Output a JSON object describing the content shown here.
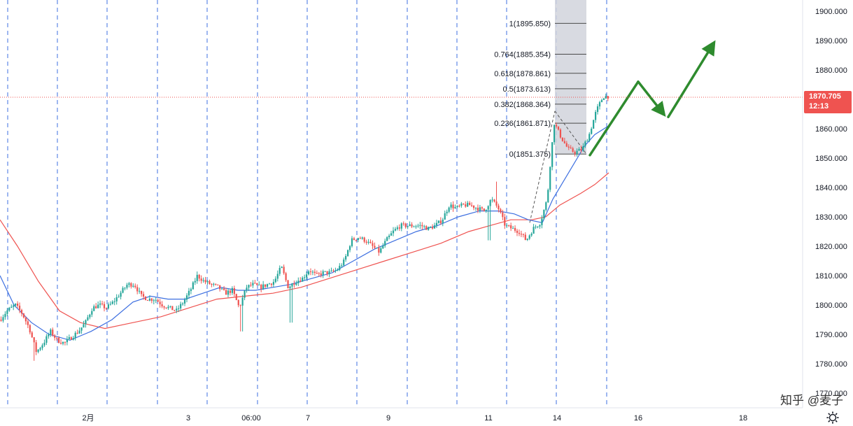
{
  "chart_data": {
    "type": "candlestick",
    "ylim": [
      1770,
      1905
    ],
    "y_ticks": [
      1770,
      1780,
      1790,
      1800,
      1810,
      1820,
      1830,
      1840,
      1850,
      1860,
      1870,
      1880,
      1890,
      1900
    ],
    "y_tick_labels": [
      "1770.000",
      "1780.000",
      "1790.000",
      "1800.000",
      "1810.000",
      "1820.000",
      "1830.000",
      "1840.000",
      "1850.000",
      "1860.000",
      "1870.000",
      "1880.000",
      "1890.000",
      "1900.000"
    ],
    "x_tick_labels": [
      "2月",
      "3",
      "06:00",
      "7",
      "9",
      "11",
      "14",
      "16",
      "18"
    ],
    "current_price": "1870.705",
    "countdown": "12:13",
    "colors": {
      "up": "#26a69a",
      "down": "#ef5350",
      "ma_fast": "#3d6fe0",
      "ma_slow": "#ef5350",
      "session_line": "#3d6fe0",
      "price_tag": "#ef5350",
      "arrow": "#2e8b2e",
      "fib_box": "#d1d4dc"
    },
    "fibonacci": {
      "low": 1851.375,
      "high": 1895.85,
      "levels": [
        {
          "ratio": 0,
          "price": 1851.375,
          "label": "0(1851.375)"
        },
        {
          "ratio": 0.236,
          "price": 1861.871,
          "label": "0.236(1861.871)"
        },
        {
          "ratio": 0.382,
          "price": 1868.364,
          "label": "0.382(1868.364)"
        },
        {
          "ratio": 0.5,
          "price": 1873.613,
          "label": "0.5(1873.613)"
        },
        {
          "ratio": 0.618,
          "price": 1878.861,
          "label": "0.618(1878.861)"
        },
        {
          "ratio": 0.764,
          "price": 1885.354,
          "label": "0.764(1885.354)"
        },
        {
          "ratio": 1,
          "price": 1895.85,
          "label": "1(1895.850)"
        }
      ]
    },
    "price_path": [
      [
        0,
        1795
      ],
      [
        10,
        1798
      ],
      [
        22,
        1800
      ],
      [
        32,
        1797
      ],
      [
        42,
        1792
      ],
      [
        52,
        1784
      ],
      [
        62,
        1787
      ],
      [
        72,
        1791
      ],
      [
        82,
        1788
      ],
      [
        92,
        1787
      ],
      [
        102,
        1789
      ],
      [
        112,
        1791
      ],
      [
        122,
        1794
      ],
      [
        132,
        1799
      ],
      [
        142,
        1800
      ],
      [
        152,
        1799
      ],
      [
        162,
        1801
      ],
      [
        172,
        1804
      ],
      [
        182,
        1807
      ],
      [
        192,
        1807
      ],
      [
        202,
        1803
      ],
      [
        212,
        1802
      ],
      [
        222,
        1802
      ],
      [
        232,
        1800
      ],
      [
        242,
        1799
      ],
      [
        252,
        1798
      ],
      [
        262,
        1801
      ],
      [
        272,
        1805
      ],
      [
        282,
        1810
      ],
      [
        292,
        1808
      ],
      [
        302,
        1807
      ],
      [
        312,
        1806
      ],
      [
        322,
        1804
      ],
      [
        332,
        1805
      ],
      [
        342,
        1799
      ],
      [
        352,
        1806
      ],
      [
        362,
        1807
      ],
      [
        372,
        1806
      ],
      [
        382,
        1807
      ],
      [
        392,
        1808
      ],
      [
        402,
        1813
      ],
      [
        412,
        1806
      ],
      [
        422,
        1808
      ],
      [
        432,
        1809
      ],
      [
        442,
        1812
      ],
      [
        452,
        1810
      ],
      [
        462,
        1811
      ],
      [
        472,
        1811
      ],
      [
        482,
        1812
      ],
      [
        492,
        1815
      ],
      [
        502,
        1822
      ],
      [
        512,
        1823
      ],
      [
        522,
        1822
      ],
      [
        532,
        1820
      ],
      [
        542,
        1818
      ],
      [
        552,
        1822
      ],
      [
        562,
        1825
      ],
      [
        572,
        1827
      ],
      [
        582,
        1827
      ],
      [
        592,
        1827
      ],
      [
        602,
        1827
      ],
      [
        612,
        1826
      ],
      [
        622,
        1827
      ],
      [
        632,
        1829
      ],
      [
        642,
        1834
      ],
      [
        652,
        1833
      ],
      [
        662,
        1834
      ],
      [
        672,
        1834
      ],
      [
        682,
        1833
      ],
      [
        692,
        1832
      ],
      [
        702,
        1836
      ],
      [
        712,
        1833
      ],
      [
        722,
        1827
      ],
      [
        732,
        1826
      ],
      [
        742,
        1825
      ],
      [
        752,
        1822
      ],
      [
        762,
        1826
      ],
      [
        772,
        1828
      ],
      [
        782,
        1836
      ],
      [
        787,
        1850
      ],
      [
        792,
        1862
      ],
      [
        802,
        1857
      ],
      [
        812,
        1853
      ],
      [
        822,
        1852
      ],
      [
        832,
        1853
      ],
      [
        842,
        1858
      ],
      [
        852,
        1866
      ],
      [
        862,
        1871
      ],
      [
        870,
        1871
      ]
    ],
    "ma_fast_path": [
      [
        0,
        1810
      ],
      [
        20,
        1800
      ],
      [
        45,
        1794
      ],
      [
        70,
        1790
      ],
      [
        100,
        1788
      ],
      [
        130,
        1791
      ],
      [
        160,
        1795
      ],
      [
        190,
        1801
      ],
      [
        215,
        1803
      ],
      [
        240,
        1802
      ],
      [
        265,
        1802
      ],
      [
        290,
        1804
      ],
      [
        315,
        1806
      ],
      [
        340,
        1805
      ],
      [
        365,
        1805
      ],
      [
        390,
        1806
      ],
      [
        415,
        1807
      ],
      [
        445,
        1809
      ],
      [
        475,
        1811
      ],
      [
        505,
        1815
      ],
      [
        535,
        1819
      ],
      [
        565,
        1822
      ],
      [
        595,
        1825
      ],
      [
        625,
        1827
      ],
      [
        655,
        1830
      ],
      [
        685,
        1832
      ],
      [
        712,
        1832
      ],
      [
        735,
        1831
      ],
      [
        755,
        1829
      ],
      [
        775,
        1828
      ],
      [
        790,
        1836
      ],
      [
        805,
        1842
      ],
      [
        820,
        1848
      ],
      [
        835,
        1854
      ],
      [
        850,
        1858
      ],
      [
        870,
        1861
      ]
    ],
    "ma_slow_path": [
      [
        0,
        1829
      ],
      [
        25,
        1820
      ],
      [
        55,
        1808
      ],
      [
        85,
        1798
      ],
      [
        115,
        1794
      ],
      [
        150,
        1792
      ],
      [
        190,
        1794
      ],
      [
        230,
        1796
      ],
      [
        270,
        1799
      ],
      [
        310,
        1802
      ],
      [
        350,
        1803
      ],
      [
        390,
        1804
      ],
      [
        430,
        1806
      ],
      [
        470,
        1809
      ],
      [
        510,
        1812
      ],
      [
        550,
        1815
      ],
      [
        590,
        1818
      ],
      [
        630,
        1821
      ],
      [
        670,
        1825
      ],
      [
        700,
        1827
      ],
      [
        730,
        1829
      ],
      [
        760,
        1829
      ],
      [
        780,
        1830
      ],
      [
        800,
        1834
      ],
      [
        830,
        1838
      ],
      [
        850,
        1841
      ],
      [
        870,
        1845
      ]
    ],
    "projection_arrows": [
      [
        [
          843,
          1851
        ],
        [
          912,
          1876
        ]
      ],
      [
        [
          912,
          1876
        ],
        [
          945,
          1866
        ]
      ],
      [
        [
          955,
          1864
        ],
        [
          1017,
          1888
        ]
      ]
    ],
    "session_separators": [
      11,
      82,
      153,
      225,
      296,
      368,
      439,
      510,
      582,
      653,
      724,
      795,
      867
    ]
  },
  "watermark": "知乎 @麦子"
}
